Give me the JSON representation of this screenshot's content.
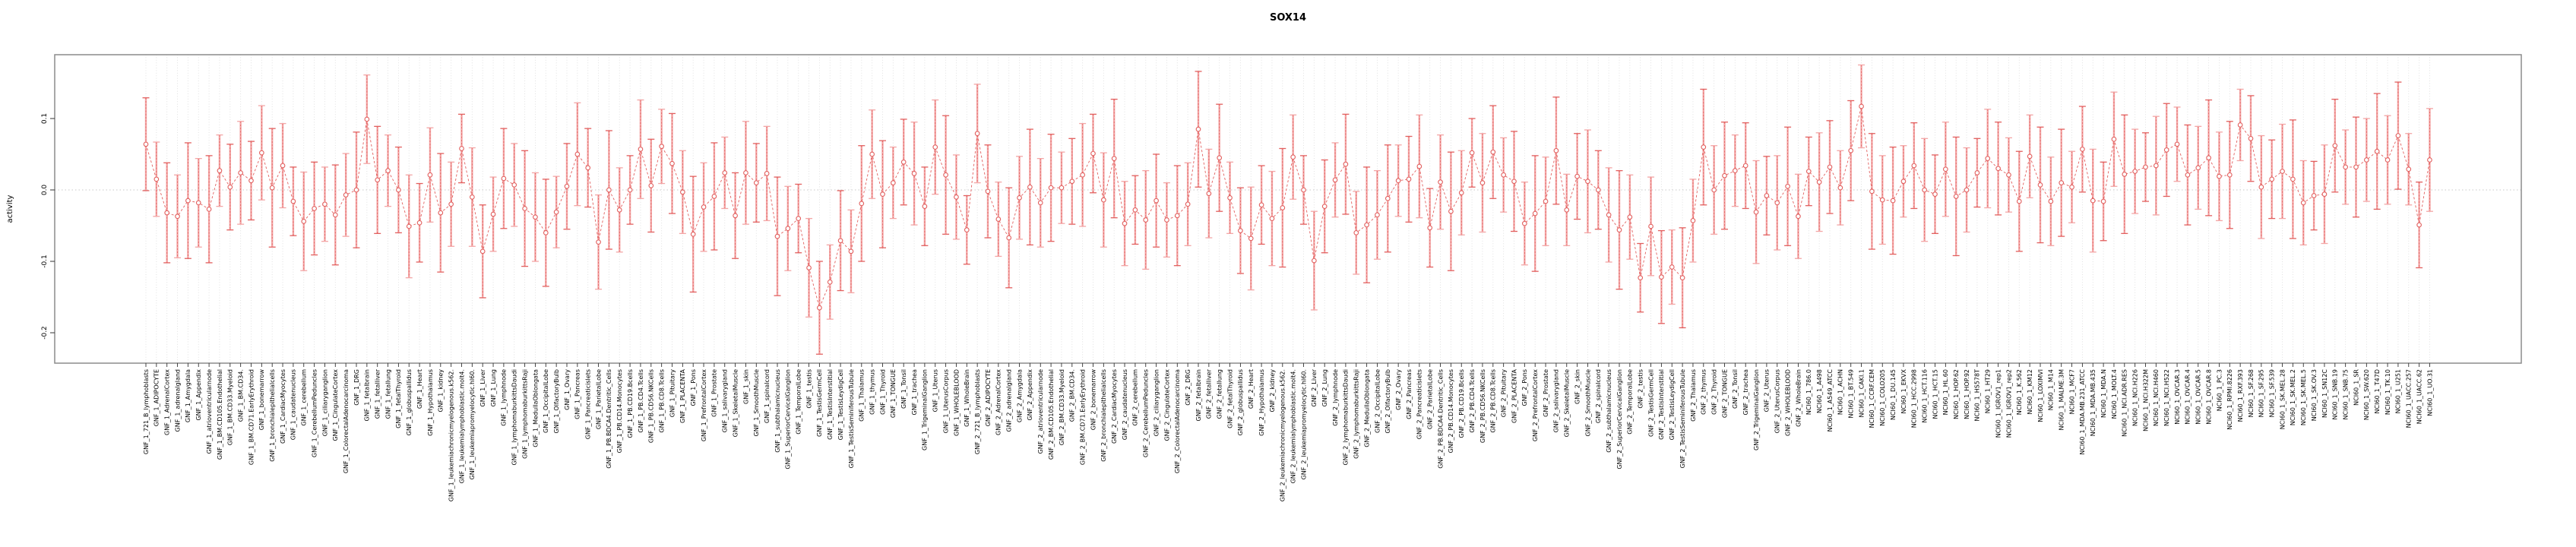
{
  "chart_data": {
    "type": "line",
    "title": "SOX14",
    "ylabel": "activity",
    "xlabel": "",
    "ylim": [
      -0.245,
      0.19
    ],
    "ytick_labels": [
      "0.1",
      "0.0",
      "-0.1",
      "-0.2"
    ],
    "grid": "dotted vertical gridline per category; dotted horizontal line at zero",
    "legend_position": "none",
    "marker": "open-circle with error bars, dashed connecting line",
    "colors": {
      "point": "#e2605f",
      "line": "#e2605f",
      "errorbar_light": "#f3a6a6",
      "errorbar_dark": "#e2605f",
      "gridline": "#dedede",
      "zero_line": "#c8c8c8",
      "box": "#8c8c8c"
    },
    "categories": [
      "GNF_1_721_B_lymphoblasts",
      "GNF_1_ADIPOCYTE",
      "GNF_1_AdrenalCortex",
      "GNF_1_adrenalgland",
      "GNF_1_Amygdala",
      "GNF_1_Appendix",
      "GNF_1_atrioventricularnode",
      "GNF_1_BM.CD105.Endothelial",
      "GNF_1_BM.CD33.Myeloid",
      "GNF_1_BM.CD34.",
      "GNF_1_BM.CD71.EarlyErythroid",
      "GNF_1_bonemarrow",
      "GNF_1_bronchialepithelialcells",
      "GNF_1_CardiacMyocytes",
      "GNF_1_caudatenucleus",
      "GNF_1_cerebellum",
      "GNF_1_CerebellumPeduncles",
      "GNF_1_ciliaryganglion",
      "GNF_1_CingulateCortex",
      "GNF_1_ColorectalAdenocarcinoma",
      "GNF_1_DRG",
      "GNF_1_fetalbrain",
      "GNF_1_fetalliver",
      "GNF_1_fetallung",
      "GNF_1_fetalThyroid",
      "GNF_1_globuspallidus",
      "GNF_1_Heart",
      "GNF_1_Hypothalamus",
      "GNF_1_kidney",
      "GNF_1_leukemiachronicmyelogenous.k562.",
      "GNF_1_leukemialymphoblastic.molt4.",
      "GNF_1_leukemiapromyelocytic.hl60.",
      "GNF_1_Liver",
      "GNF_1_Lung",
      "GNF_1_lymphnode",
      "GNF_1_lymphomaburkittsDaudi",
      "GNF_1_lymphomaburkittsRaji",
      "GNF_1_MedullaOblongata",
      "GNF_1_OccipitalLobe",
      "GNF_1_OlfactoryBulb",
      "GNF_1_Ovary",
      "GNF_1_Pancreas",
      "GNF_1_Pancreaticislets",
      "GNF_1_ParietalLobe",
      "GNF_1_PB.BDCA4.Dentritic_Cells",
      "GNF_1_PB.CD14.Monocytes",
      "GNF_1_PB.CD19.Bcells",
      "GNF_1_PB.CD4.Tcells",
      "GNF_1_PB.CD56.NKCells",
      "GNF_1_PB.CD8.Tcells",
      "GNF_1_Pituitary",
      "GNF_1_PLACENTA",
      "GNF_1_Pons",
      "GNF_1_PrefrontalCortex",
      "GNF_1_Prostate",
      "GNF_1_salivarygland",
      "GNF_1_SkeletalMuscle",
      "GNF_1_skin",
      "GNF_1_SmoothMuscle",
      "GNF_1_spinalcord",
      "GNF_1_subthalamicnucleus",
      "GNF_1_SuperiorCervicalGanglion",
      "GNF_1_TemporalLobe",
      "GNF_1_testis",
      "GNF_1_TestisGermCell",
      "GNF_1_TestisInterstitial",
      "GNF_1_TestisLeydigCell",
      "GNF_1_TestisSeminiferousTubule",
      "GNF_1_Thalamus",
      "GNF_1_thymus",
      "GNF_1_Thyroid",
      "GNF_1_TONGUE",
      "GNF_1_Tonsil",
      "GNF_1_trachea",
      "GNF_1_TrigeminalGanglion",
      "GNF_1_Uterus",
      "GNF_1_UterusCorpus",
      "GNF_1_WHOLEBLOOD",
      "GNF_1_WholeBrain",
      "GNF_2_721_B_lymphoblasts",
      "GNF_2_ADIPOCYTE",
      "GNF_2_AdrenalCortex",
      "GNF_2_adrenalgland",
      "GNF_2_Amygdala",
      "GNF_2_Appendix",
      "GNF_2_atrioventricularnode",
      "GNF_2_BM.CD105.Endothelial",
      "GNF_2_BM.CD33.Myeloid",
      "GNF_2_BM.CD34.",
      "GNF_2_BM.CD71.EarlyErythroid",
      "GNF_2_bonemarrow",
      "GNF_2_bronchialepithelialcells",
      "GNF_2_CardiacMyocytes",
      "GNF_2_caudatenucleus",
      "GNF_2_cerebellum",
      "GNF_2_CerebellumPeduncles",
      "GNF_2_ciliaryganglion",
      "GNF_2_CingulateCortex",
      "GNF_2_ColorectalAdenocarcinoma",
      "GNF_2_DRG",
      "GNF_2_fetalbrain",
      "GNF_2_fetalliver",
      "GNF_2_fetallung",
      "GNF_2_fetalThyroid",
      "GNF_2_globuspallidus",
      "GNF_2_Heart",
      "GNF_2_Hypothalamus",
      "GNF_2_kidney",
      "GNF_2_leukemiachronicmyelogenous.k562.",
      "GNF_2_leukemialymphoblastic.molt4.",
      "GNF_2_leukemiapromyelocytic.hl60.",
      "GNF_2_Liver",
      "GNF_2_Lung",
      "GNF_2_lymphnode",
      "GNF_2_lymphomaburkittsDaudi",
      "GNF_2_lymphomaburkittsRaji",
      "GNF_2_MedullaOblongata",
      "GNF_2_OccipitalLobe",
      "GNF_2_OlfactoryBulb",
      "GNF_2_Ovary",
      "GNF_2_Pancreas",
      "GNF_2_Pancreaticislets",
      "GNF_2_ParietalLobe",
      "GNF_2_PB.BDCA4.Dentritic_Cells",
      "GNF_2_PB.CD14.Monocytes",
      "GNF_2_PB.CD19.Bcells",
      "GNF_2_PB.CD4.Tcells",
      "GNF_2_PB.CD56.NKCells",
      "GNF_2_PB.CD8.Tcells",
      "GNF_2_Pituitary",
      "GNF_2_PLACENTA",
      "GNF_2_Pons",
      "GNF_2_PrefrontalCortex",
      "GNF_2_Prostate",
      "GNF_2_salivarygland",
      "GNF_2_SkeletalMuscle",
      "GNF_2_skin",
      "GNF_2_SmoothMuscle",
      "GNF_2_spinalcord",
      "GNF_2_subthalamicnucleus",
      "GNF_2_SuperiorCervicalGanglion",
      "GNF_2_TemporalLobe",
      "GNF_2_testis",
      "GNF_2_TestisGermCell",
      "GNF_2_TestisInterstitial",
      "GNF_2_TestisLeydigCell",
      "GNF_2_TestisSeminiferousTubule",
      "GNF_2_Thalamus",
      "GNF_2_thymus",
      "GNF_2_Thyroid",
      "GNF_2_TONGUE",
      "GNF_2_Tonsil",
      "GNF_2_trachea",
      "GNF_2_TrigeminalGanglion",
      "GNF_2_Uterus",
      "GNF_2_UterusCorpus",
      "GNF_2_WHOLEBLOOD",
      "GNF_2_WholeBrain",
      "NCI60_1_786.0",
      "NCI60_1_A498",
      "NCI60_1_A549_ATCC",
      "NCI60_1_ACHN",
      "NCI60_1_BT.549",
      "NCI60_1_CAKI.1",
      "NCI60_1_CCRF.CEM",
      "NCI60_1_COLO205",
      "NCI60_1_DU.145",
      "NCI60_1_EKVX",
      "NCI60_1_HCC.2998",
      "NCI60_1_HCT.116",
      "NCI60_1_HCT.15",
      "NCI60_1_HL.60",
      "NCI60_1_HOP.62",
      "NCI60_1_HOP.92",
      "NCI60_1_HS578T",
      "NCI60_1_HT29",
      "NCI60_1_IGROV1_rep1",
      "NCI60_1_IGROV1_rep2",
      "NCI60_1_K.562",
      "NCI60_1_KM12",
      "NCI60_1_LOXIMVI",
      "NCI60_1_M14",
      "NCI60_1_MALME.3M",
      "NCI60_1_MCF7",
      "NCI60_1_MDA.MB.231_ATCC",
      "NCI60_1_MDA.MB.435",
      "NCI60_1_MDA.N",
      "NCI60_1_MOLT.4",
      "NCI60_1_NCI.ADR.RES",
      "NCI60_1_NCI.H226",
      "NCI60_1_NCI.H322M",
      "NCI60_1_NCI.H460",
      "NCI60_1_NCI.H522",
      "NCI60_1_OVCAR.3",
      "NCI60_1_OVCAR.4",
      "NCI60_1_OVCAR.5",
      "NCI60_1_OVCAR.8",
      "NCI60_1_PC.3",
      "NCI60_1_RPMI.8226",
      "NCI60_1_RXF.393",
      "NCI60_1_SF.268",
      "NCI60_1_SF.295",
      "NCI60_1_SF.539",
      "NCI60_1_SK.MEL.28",
      "NCI60_1_SK.MEL.2",
      "NCI60_1_SK.MEL.5",
      "NCI60_1_SK.OV.3",
      "NCI60_1_SN12C",
      "NCI60_1_SNB.19",
      "NCI60_1_SNB.75",
      "NCI60_1_SR",
      "NCI60_1_SW.620",
      "NCI60_1_T47D",
      "NCI60_1_TK.10",
      "NCI60_1_U251",
      "NCI60_1_UACC.257",
      "NCI60_1_UACC.62",
      "NCI60_1_UO.31"
    ],
    "values": [
      0.064,
      0.015,
      -0.032,
      -0.037,
      -0.015,
      -0.018,
      -0.027,
      0.027,
      0.004,
      0.024,
      0.013,
      0.052,
      0.003,
      0.034,
      -0.016,
      -0.044,
      -0.026,
      -0.02,
      -0.035,
      -0.007,
      0.0,
      0.099,
      0.014,
      0.027,
      0.0,
      -0.051,
      -0.046,
      0.021,
      -0.032,
      -0.02,
      0.058,
      -0.01,
      -0.086,
      -0.034,
      0.016,
      0.007,
      -0.026,
      -0.038,
      -0.06,
      -0.031,
      0.005,
      0.05,
      0.031,
      -0.073,
      0.0,
      -0.028,
      0.0,
      0.057,
      0.006,
      0.061,
      0.037,
      -0.003,
      -0.062,
      -0.024,
      -0.009,
      0.024,
      -0.036,
      0.024,
      0.01,
      0.023,
      -0.065,
      -0.054,
      -0.04,
      -0.109,
      -0.165,
      -0.129,
      -0.071,
      -0.086,
      -0.019,
      0.05,
      -0.006,
      0.01,
      0.039,
      0.023,
      -0.023,
      0.06,
      0.021,
      -0.01,
      -0.056,
      0.079,
      -0.002,
      -0.041,
      -0.067,
      -0.011,
      0.004,
      -0.018,
      0.003,
      0.003,
      0.012,
      0.021,
      0.051,
      -0.014,
      0.044,
      -0.047,
      -0.028,
      -0.042,
      -0.015,
      -0.042,
      -0.036,
      -0.02,
      0.085,
      -0.005,
      0.045,
      -0.011,
      -0.057,
      -0.068,
      -0.021,
      -0.04,
      -0.025,
      0.046,
      0.0,
      -0.099,
      -0.023,
      0.014,
      0.036,
      -0.06,
      -0.049,
      -0.035,
      -0.012,
      0.013,
      0.015,
      0.033,
      -0.053,
      0.011,
      -0.03,
      -0.004,
      0.052,
      0.01,
      0.053,
      0.021,
      0.012,
      -0.047,
      -0.033,
      -0.016,
      0.055,
      -0.028,
      0.019,
      0.012,
      0.0,
      -0.035,
      -0.056,
      -0.038,
      -0.123,
      -0.051,
      -0.122,
      -0.108,
      -0.123,
      -0.043,
      0.06,
      0.0,
      0.02,
      0.027,
      0.034,
      -0.031,
      -0.008,
      -0.018,
      0.005,
      -0.037,
      0.026,
      0.011,
      0.032,
      0.003,
      0.055,
      0.117,
      -0.002,
      -0.014,
      -0.015,
      0.012,
      0.034,
      0.0,
      -0.006,
      0.029,
      -0.009,
      0.0,
      0.024,
      0.044,
      0.03,
      0.021,
      -0.016,
      0.047,
      0.007,
      -0.016,
      0.01,
      0.004,
      0.057,
      -0.015,
      -0.016,
      0.071,
      0.022,
      0.026,
      0.032,
      0.034,
      0.056,
      0.064,
      0.021,
      0.031,
      0.045,
      0.019,
      0.021,
      0.091,
      0.072,
      0.004,
      0.015,
      0.026,
      0.015,
      -0.018,
      -0.008,
      -0.006,
      0.062,
      0.032,
      0.032,
      0.042,
      0.054,
      0.042,
      0.076,
      0.029,
      -0.049,
      0.042
    ],
    "errors": [
      0.065,
      0.052,
      0.07,
      0.058,
      0.081,
      0.062,
      0.075,
      0.05,
      0.06,
      0.072,
      0.055,
      0.066,
      0.083,
      0.059,
      0.048,
      0.069,
      0.065,
      0.052,
      0.07,
      0.058,
      0.081,
      0.062,
      0.075,
      0.05,
      0.06,
      0.072,
      0.055,
      0.066,
      0.083,
      0.059,
      0.048,
      0.069,
      0.065,
      0.052,
      0.07,
      0.058,
      0.081,
      0.062,
      0.075,
      0.05,
      0.06,
      0.072,
      0.055,
      0.066,
      0.083,
      0.059,
      0.048,
      0.069,
      0.065,
      0.052,
      0.07,
      0.058,
      0.081,
      0.062,
      0.075,
      0.05,
      0.06,
      0.072,
      0.055,
      0.066,
      0.083,
      0.059,
      0.048,
      0.069,
      0.065,
      0.052,
      0.07,
      0.058,
      0.081,
      0.062,
      0.075,
      0.05,
      0.06,
      0.072,
      0.055,
      0.066,
      0.083,
      0.059,
      0.048,
      0.069,
      0.065,
      0.052,
      0.07,
      0.058,
      0.081,
      0.062,
      0.075,
      0.05,
      0.06,
      0.072,
      0.055,
      0.066,
      0.083,
      0.059,
      0.048,
      0.069,
      0.065,
      0.052,
      0.07,
      0.058,
      0.081,
      0.062,
      0.075,
      0.05,
      0.06,
      0.072,
      0.055,
      0.066,
      0.083,
      0.059,
      0.048,
      0.069,
      0.065,
      0.052,
      0.07,
      0.058,
      0.081,
      0.062,
      0.075,
      0.05,
      0.06,
      0.072,
      0.055,
      0.066,
      0.083,
      0.059,
      0.048,
      0.069,
      0.065,
      0.052,
      0.07,
      0.058,
      0.081,
      0.062,
      0.075,
      0.05,
      0.06,
      0.072,
      0.055,
      0.066,
      0.083,
      0.059,
      0.048,
      0.069,
      0.065,
      0.052,
      0.07,
      0.058,
      0.081,
      0.062,
      0.075,
      0.05,
      0.06,
      0.072,
      0.055,
      0.066,
      0.083,
      0.059,
      0.048,
      0.069,
      0.065,
      0.052,
      0.07,
      0.058,
      0.081,
      0.062,
      0.075,
      0.05,
      0.06,
      0.072,
      0.055,
      0.066,
      0.083,
      0.059,
      0.048,
      0.069,
      0.065,
      0.052,
      0.07,
      0.058,
      0.081,
      0.062,
      0.075,
      0.05,
      0.06,
      0.072,
      0.055,
      0.066,
      0.083,
      0.059,
      0.048,
      0.069,
      0.065,
      0.052,
      0.07,
      0.058,
      0.081,
      0.062,
      0.075,
      0.05,
      0.06,
      0.072,
      0.055,
      0.066,
      0.083,
      0.059,
      0.048,
      0.069,
      0.065,
      0.052,
      0.07,
      0.058,
      0.081,
      0.062,
      0.075,
      0.05,
      0.06,
      0.072
    ]
  }
}
